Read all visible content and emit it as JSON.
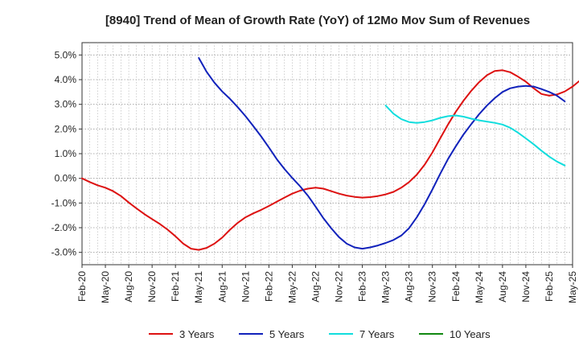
{
  "chart_data": {
    "type": "line",
    "title": "[8940]  Trend of Mean of Growth Rate (YoY) of 12Mo Mov Sum of Revenues",
    "xlabel": "",
    "ylabel": "",
    "ylim": [
      -3.5,
      5.5
    ],
    "yticks": [
      -3.0,
      -2.0,
      -1.0,
      0.0,
      1.0,
      2.0,
      3.0,
      4.0,
      5.0
    ],
    "ytick_labels": [
      "-3.0%",
      "-2.0%",
      "-1.0%",
      "0.0%",
      "1.0%",
      "2.0%",
      "3.0%",
      "4.0%",
      "5.0%"
    ],
    "x_tick_labels": [
      "Feb-20",
      "May-20",
      "Aug-20",
      "Nov-20",
      "Feb-21",
      "May-21",
      "Aug-21",
      "Nov-21",
      "Feb-22",
      "May-22",
      "Aug-22",
      "Nov-22",
      "Feb-23",
      "May-23",
      "Aug-23",
      "Nov-23",
      "Feb-24",
      "May-24",
      "Aug-24",
      "Nov-24",
      "Feb-25",
      "May-25"
    ],
    "x_months_total": 63,
    "grid": true,
    "legend_position": "bottom",
    "series": [
      {
        "name": "3 Years",
        "color": "#dd1111",
        "points": [
          [
            0,
            0.0
          ],
          [
            1,
            -0.15
          ],
          [
            2,
            -0.28
          ],
          [
            3,
            -0.38
          ],
          [
            4,
            -0.52
          ],
          [
            5,
            -0.72
          ],
          [
            6,
            -0.98
          ],
          [
            7,
            -1.22
          ],
          [
            8,
            -1.45
          ],
          [
            9,
            -1.65
          ],
          [
            10,
            -1.85
          ],
          [
            11,
            -2.08
          ],
          [
            12,
            -2.35
          ],
          [
            13,
            -2.65
          ],
          [
            14,
            -2.85
          ],
          [
            15,
            -2.9
          ],
          [
            16,
            -2.82
          ],
          [
            17,
            -2.65
          ],
          [
            18,
            -2.4
          ],
          [
            19,
            -2.08
          ],
          [
            20,
            -1.8
          ],
          [
            21,
            -1.58
          ],
          [
            22,
            -1.42
          ],
          [
            23,
            -1.28
          ],
          [
            24,
            -1.12
          ],
          [
            25,
            -0.95
          ],
          [
            26,
            -0.78
          ],
          [
            27,
            -0.62
          ],
          [
            28,
            -0.5
          ],
          [
            29,
            -0.42
          ],
          [
            30,
            -0.38
          ],
          [
            31,
            -0.42
          ],
          [
            32,
            -0.52
          ],
          [
            33,
            -0.62
          ],
          [
            34,
            -0.7
          ],
          [
            35,
            -0.75
          ],
          [
            36,
            -0.78
          ],
          [
            37,
            -0.76
          ],
          [
            38,
            -0.72
          ],
          [
            39,
            -0.65
          ],
          [
            40,
            -0.55
          ],
          [
            41,
            -0.38
          ],
          [
            42,
            -0.15
          ],
          [
            43,
            0.15
          ],
          [
            44,
            0.55
          ],
          [
            45,
            1.05
          ],
          [
            46,
            1.62
          ],
          [
            47,
            2.18
          ],
          [
            48,
            2.7
          ],
          [
            49,
            3.15
          ],
          [
            50,
            3.55
          ],
          [
            51,
            3.9
          ],
          [
            52,
            4.18
          ],
          [
            53,
            4.35
          ],
          [
            54,
            4.38
          ],
          [
            55,
            4.3
          ],
          [
            56,
            4.12
          ],
          [
            57,
            3.92
          ],
          [
            58,
            3.65
          ],
          [
            59,
            3.42
          ],
          [
            60,
            3.35
          ],
          [
            61,
            3.4
          ],
          [
            62,
            3.52
          ],
          [
            63,
            3.72
          ],
          [
            64,
            3.98
          ]
        ]
      },
      {
        "name": "5 Years",
        "color": "#1122bb",
        "points": [
          [
            15,
            4.88
          ],
          [
            16,
            4.32
          ],
          [
            17,
            3.88
          ],
          [
            18,
            3.52
          ],
          [
            19,
            3.22
          ],
          [
            20,
            2.88
          ],
          [
            21,
            2.52
          ],
          [
            22,
            2.12
          ],
          [
            23,
            1.7
          ],
          [
            24,
            1.25
          ],
          [
            25,
            0.78
          ],
          [
            26,
            0.38
          ],
          [
            27,
            0.02
          ],
          [
            28,
            -0.32
          ],
          [
            29,
            -0.7
          ],
          [
            30,
            -1.15
          ],
          [
            31,
            -1.62
          ],
          [
            32,
            -2.02
          ],
          [
            33,
            -2.38
          ],
          [
            34,
            -2.65
          ],
          [
            35,
            -2.8
          ],
          [
            36,
            -2.85
          ],
          [
            37,
            -2.8
          ],
          [
            38,
            -2.72
          ],
          [
            39,
            -2.62
          ],
          [
            40,
            -2.5
          ],
          [
            41,
            -2.32
          ],
          [
            42,
            -2.02
          ],
          [
            43,
            -1.58
          ],
          [
            44,
            -1.05
          ],
          [
            45,
            -0.45
          ],
          [
            46,
            0.18
          ],
          [
            47,
            0.78
          ],
          [
            48,
            1.3
          ],
          [
            49,
            1.78
          ],
          [
            50,
            2.2
          ],
          [
            51,
            2.6
          ],
          [
            52,
            2.95
          ],
          [
            53,
            3.25
          ],
          [
            54,
            3.5
          ],
          [
            55,
            3.65
          ],
          [
            56,
            3.72
          ],
          [
            57,
            3.75
          ],
          [
            58,
            3.72
          ],
          [
            59,
            3.62
          ],
          [
            60,
            3.5
          ],
          [
            61,
            3.35
          ],
          [
            62,
            3.12
          ]
        ]
      },
      {
        "name": "7 Years",
        "color": "#11dddd",
        "points": [
          [
            39,
            2.95
          ],
          [
            40,
            2.62
          ],
          [
            41,
            2.4
          ],
          [
            42,
            2.28
          ],
          [
            43,
            2.25
          ],
          [
            44,
            2.28
          ],
          [
            45,
            2.35
          ],
          [
            46,
            2.45
          ],
          [
            47,
            2.52
          ],
          [
            48,
            2.55
          ],
          [
            49,
            2.5
          ],
          [
            50,
            2.42
          ],
          [
            51,
            2.35
          ],
          [
            52,
            2.3
          ],
          [
            53,
            2.25
          ],
          [
            54,
            2.18
          ],
          [
            55,
            2.05
          ],
          [
            56,
            1.85
          ],
          [
            57,
            1.62
          ],
          [
            58,
            1.38
          ],
          [
            59,
            1.12
          ],
          [
            60,
            0.88
          ],
          [
            61,
            0.68
          ],
          [
            62,
            0.52
          ]
        ]
      },
      {
        "name": "10 Years",
        "color": "#118811",
        "points": []
      }
    ]
  }
}
